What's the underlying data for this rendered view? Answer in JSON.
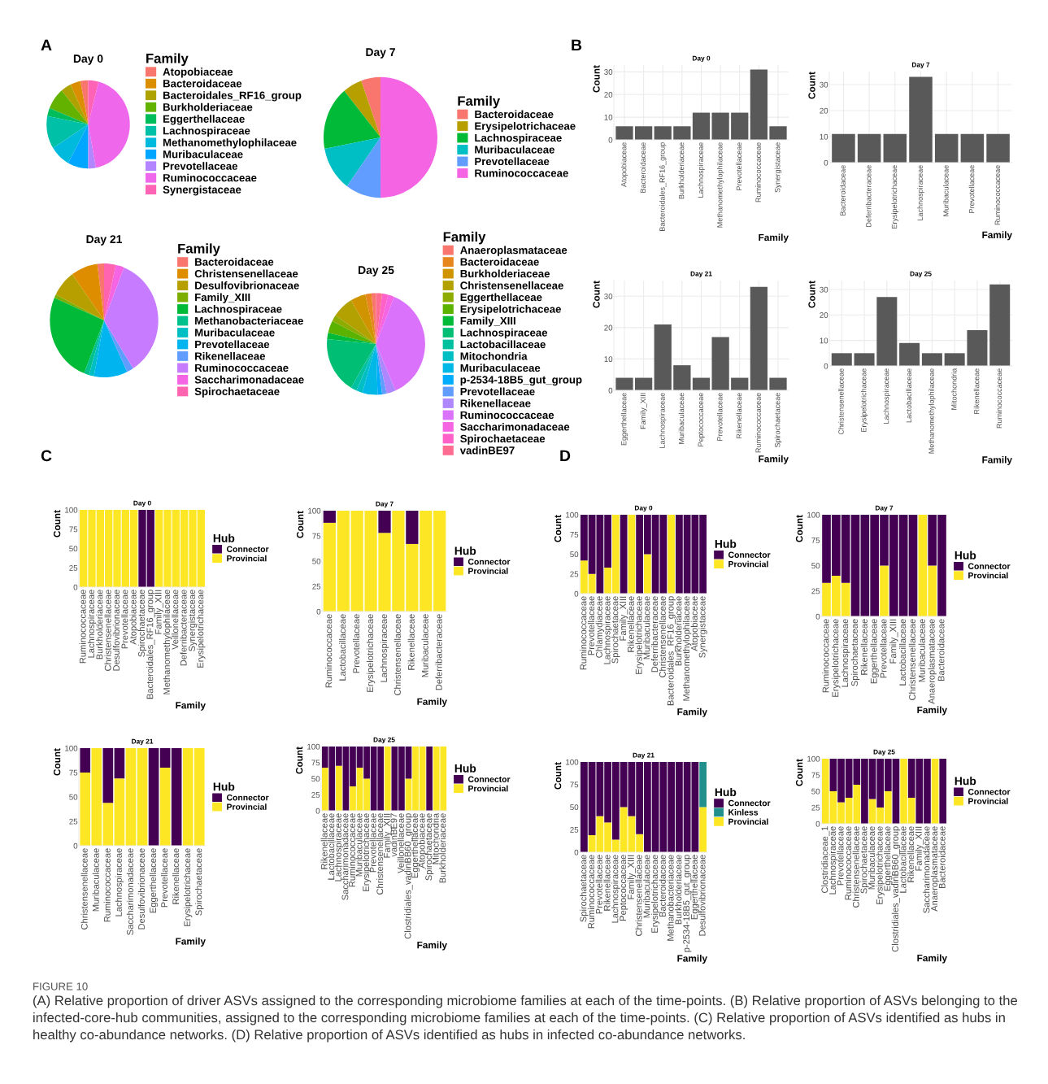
{
  "chart_data": [
    {
      "type": "pie",
      "title": "Day 0",
      "legend_title": "Family",
      "legend": "right",
      "annotations": [
        "A"
      ],
      "categories": [
        "Atopobiaceae",
        "Bacteroidaceae",
        "Bacteroidales_RF16_group",
        "Burkholderiaceae",
        "Eggerthellaceae",
        "Lachnospiraceae",
        "Methanomethylophilaceae",
        "Muribaculaceae",
        "Prevotellaceae",
        "Ruminococcaceae",
        "Synergistaceae"
      ],
      "values": [
        3,
        4,
        4,
        8,
        3,
        12,
        8,
        8,
        3,
        43,
        4
      ],
      "colors": [
        "#F8766D",
        "#DB8E00",
        "#AEA200",
        "#64B200",
        "#00BD5C",
        "#00C1A7",
        "#00BADE",
        "#00A6FF",
        "#B385FF",
        "#EF67EB",
        "#FF63B6"
      ]
    },
    {
      "type": "pie",
      "title": "Day 7",
      "legend_title": "Family",
      "legend": "right",
      "categories": [
        "Bacteroidaceae",
        "Erysipelotrichaceae",
        "Lachnospiraceae",
        "Muribaculaceae",
        "Prevotellaceae",
        "Ruminococcaceae"
      ],
      "values": [
        5.5,
        5.5,
        17,
        12,
        10,
        50
      ],
      "colors": [
        "#F8766D",
        "#B79F00",
        "#00BA38",
        "#00BFC4",
        "#619CFF",
        "#F564E3"
      ]
    },
    {
      "type": "pie",
      "title": "Day 21",
      "legend_title": "Family",
      "legend": "right",
      "categories": [
        "Bacteroidaceae",
        "Christensenellaceae",
        "Desulfovibrionaceae",
        "Family_XIII",
        "Lachnospiraceae",
        "Methanobacteriaceae",
        "Muribaculaceae",
        "Prevotellaceae",
        "Rikenellaceae",
        "Ruminococcaceae",
        "Saccharimonadaceae",
        "Spirochaetaceae"
      ],
      "values": [
        2,
        8,
        7.5,
        1,
        25.5,
        1.5,
        1.5,
        10,
        2,
        35,
        2.5,
        3.5
      ],
      "colors": [
        "#F8766D",
        "#DE8C00",
        "#B79F00",
        "#7CAE00",
        "#00BA38",
        "#00C08B",
        "#00BFC4",
        "#00B4F0",
        "#619CFF",
        "#C77CFF",
        "#F564E3",
        "#FF64B0"
      ]
    },
    {
      "type": "pie",
      "title": "Day 25",
      "legend_title": "Family",
      "legend": "right",
      "categories": [
        "Anaeroplasmataceae",
        "Bacteroidaceae",
        "Burkholderiaceae",
        "Christensenellaceae",
        "Eggerthellaceae",
        "Erysipelotrichaceae",
        "Family_XIII",
        "Lachnospiraceae",
        "Lactobacillaceae",
        "Mitochondria",
        "Muribaculaceae",
        "p-2534-18B5_gut_group",
        "Prevotellaceae",
        "Rikenellaceae",
        "Ruminococcaceae",
        "Saccharimonadaceae",
        "Spirochaetaceae",
        "vadinBE97"
      ],
      "values": [
        1.5,
        2,
        5,
        7,
        2,
        4,
        2,
        18,
        2,
        2,
        5,
        1.5,
        1.5,
        3,
        37.5,
        2,
        2,
        2
      ],
      "colors": [
        "#F8766D",
        "#E7851E",
        "#D09400",
        "#B2A100",
        "#8EAB00",
        "#5BB300",
        "#00BA38",
        "#00BF74",
        "#00C19F",
        "#00BFC4",
        "#00B8E5",
        "#00ACFC",
        "#619CFF",
        "#AE87FF",
        "#DB72FB",
        "#F564E3",
        "#FF61C9",
        "#FF6C91"
      ]
    },
    {
      "type": "bar",
      "title": "Day 0",
      "xlabel": "Family",
      "ylabel": "Count",
      "annotations": [
        "B"
      ],
      "grid": true,
      "ylim": [
        0,
        33
      ],
      "yticks": [
        0,
        10,
        20,
        30
      ],
      "categories": [
        "Atopobiaceae",
        "Bacteroidaceae",
        "Bacteroidales_RF16_group",
        "Burkholderiaceae",
        "Lachnospiraceae",
        "Methanomethylophilaceae",
        "Prevotellaceae",
        "Ruminococcaceae",
        "Synergistaceae"
      ],
      "series": [
        {
          "color": "#595959",
          "values": [
            6,
            6,
            6,
            6,
            12,
            12,
            12,
            31,
            6
          ]
        }
      ]
    },
    {
      "type": "bar",
      "title": "Day 7",
      "xlabel": "Family",
      "ylabel": "Count",
      "grid": true,
      "ylim": [
        0,
        35
      ],
      "yticks": [
        0,
        10,
        20,
        30
      ],
      "categories": [
        "Bacteroidaceae",
        "Deferribacteraceae",
        "Erysipelotrichaceae",
        "Lachnospiraceae",
        "Muribaculaceae",
        "Prevotellaceae",
        "Ruminococcaceae"
      ],
      "series": [
        {
          "color": "#595959",
          "values": [
            11,
            11,
            11,
            33,
            11,
            11,
            11
          ]
        }
      ]
    },
    {
      "type": "bar",
      "title": "Day 21",
      "xlabel": "Family",
      "ylabel": "Count",
      "grid": true,
      "ylim": [
        0,
        35
      ],
      "yticks": [
        0,
        10,
        20,
        30
      ],
      "categories": [
        "Eggerthellaceae",
        "Family_XIII",
        "Lachnospiraceae",
        "Muribaculaceae",
        "Peptococcaceae",
        "Prevotellaceae",
        "Rikenellaceae",
        "Ruminococcaceae",
        "Spirochaetaceae"
      ],
      "series": [
        {
          "color": "#595959",
          "values": [
            4,
            4,
            21,
            8,
            4,
            17,
            4,
            33,
            4
          ]
        }
      ]
    },
    {
      "type": "bar",
      "title": "Day 25",
      "xlabel": "Family",
      "ylabel": "Count",
      "grid": true,
      "ylim": [
        0,
        33.5
      ],
      "yticks": [
        0,
        10,
        20,
        30
      ],
      "categories": [
        "Christensenellaceae",
        "Erysipelotrichaceae",
        "Lachnospiraceae",
        "Lactobacillaceae",
        "Methanomethylophilaceae",
        "Mitochondria",
        "Rikenellaceae",
        "Ruminococcaceae"
      ],
      "series": [
        {
          "color": "#595959",
          "values": [
            5,
            5,
            27,
            9,
            5,
            5,
            14,
            32
          ]
        }
      ]
    },
    {
      "type": "bar",
      "stacked": true,
      "title": "Day 0",
      "xlabel": "Family",
      "ylabel": "Count",
      "legend_title": "Hub",
      "legend": "right",
      "annotations": [
        "C"
      ],
      "ylim": [
        0,
        100
      ],
      "yticks": [
        0,
        25,
        50,
        75,
        100
      ],
      "categories": [
        "Ruminococcaceae",
        "Lachnospiraceae",
        "Burkholderiaceae",
        "Christensenellaceae",
        "Desulfovibrionaceae",
        "Prevotellaceae",
        "Atopobiaceae",
        "Spirochaetaceae",
        "Bacteroidales_RF16_group",
        "Family_XIII",
        "Methanomethylophilaceae",
        "Veillonellaceae",
        "Deferribacteraceae",
        "Synergistaceae",
        "Erysipelotrichaceae"
      ],
      "series": [
        {
          "name": "Provincial",
          "color": "#FDE725",
          "values": [
            100,
            100,
            100,
            100,
            100,
            100,
            100,
            0,
            0,
            100,
            100,
            100,
            100,
            100,
            100
          ]
        },
        {
          "name": "Connector",
          "color": "#440154",
          "values": [
            0,
            0,
            0,
            0,
            0,
            0,
            0,
            100,
            100,
            0,
            0,
            0,
            0,
            0,
            0
          ]
        }
      ]
    },
    {
      "type": "bar",
      "stacked": true,
      "title": "Day 7",
      "xlabel": "Family",
      "ylabel": "Count",
      "legend_title": "Hub",
      "legend": "right",
      "ylim": [
        0,
        100
      ],
      "yticks": [
        0,
        25,
        50,
        75,
        100
      ],
      "categories": [
        "Ruminococcaceae",
        "Lactobacillaceae",
        "Prevotellaceae",
        "Erysipelotrichaceae",
        "Lachnospiraceae",
        "Christensenellaceae",
        "Rikenellaceae",
        "Muribaculaceae",
        "Deferribacteraceae"
      ],
      "series": [
        {
          "name": "Provincial",
          "color": "#FDE725",
          "values": [
            88,
            100,
            100,
            100,
            78,
            100,
            67,
            100,
            100
          ]
        },
        {
          "name": "Connector",
          "color": "#440154",
          "values": [
            12,
            0,
            0,
            0,
            22,
            0,
            33,
            0,
            0
          ]
        }
      ]
    },
    {
      "type": "bar",
      "stacked": true,
      "title": "Day 21",
      "xlabel": "Family",
      "ylabel": "Count",
      "legend_title": "Hub",
      "legend": "right",
      "ylim": [
        0,
        100
      ],
      "yticks": [
        0,
        25,
        50,
        75,
        100
      ],
      "categories": [
        "Christensenellaceae",
        "Muribaculaceae",
        "Ruminococcaceae",
        "Lachnospiraceae",
        "Saccharimonadaceae",
        "Desulfovibrionaceae",
        "Eggerthellaceae",
        "Prevotellaceae",
        "Rikenellaceae",
        "Erysipelotrichaceae",
        "Spirochaetaceae"
      ],
      "series": [
        {
          "name": "Provincial",
          "color": "#FDE725",
          "values": [
            75,
            100,
            44,
            69,
            100,
            100,
            0,
            80,
            0,
            100,
            100
          ]
        },
        {
          "name": "Connector",
          "color": "#440154",
          "values": [
            25,
            0,
            56,
            31,
            0,
            0,
            100,
            20,
            100,
            0,
            0
          ]
        }
      ]
    },
    {
      "type": "bar",
      "stacked": true,
      "title": "Day 25",
      "xlabel": "Family",
      "ylabel": "Count",
      "legend_title": "Hub",
      "legend": "right",
      "ylim": [
        0,
        100
      ],
      "yticks": [
        0,
        25,
        50,
        75,
        100
      ],
      "categories": [
        "Rikenellaceae",
        "Lactobacillaceae",
        "Lachnospiraceae",
        "Saccharimonadaceae",
        "Ruminococcaceae",
        "Muribaculaceae",
        "Erysipelotrichaceae",
        "Prevotellaceae",
        "Christensenellaceae",
        "Family_XIII",
        "vadinBE97",
        "Veillonellaceae",
        "Clostridiales_vadinBB60_group",
        "Eggerthellaceae",
        "Atopobiaceae",
        "Spirochaetaceae",
        "Mitochondria",
        "Burkholderiaceae"
      ],
      "series": [
        {
          "name": "Provincial",
          "color": "#FDE725",
          "values": [
            67,
            0,
            70,
            0,
            38,
            67,
            50,
            0,
            0,
            100,
            0,
            0,
            50,
            100,
            100,
            0,
            100,
            100
          ]
        },
        {
          "name": "Connector",
          "color": "#440154",
          "values": [
            33,
            100,
            30,
            100,
            62,
            33,
            50,
            100,
            100,
            0,
            100,
            100,
            50,
            0,
            0,
            100,
            0,
            0
          ]
        }
      ]
    },
    {
      "type": "bar",
      "stacked": true,
      "title": "Day 0",
      "xlabel": "Family",
      "ylabel": "Count",
      "legend_title": "Hub",
      "legend": "right",
      "annotations": [
        "D"
      ],
      "ylim": [
        0,
        100
      ],
      "yticks": [
        0,
        25,
        50,
        75,
        100
      ],
      "categories": [
        "Ruminococcaceae",
        "Prevotellaceae",
        "Chlamydiaceae",
        "Lachnospiraceae",
        "Spirochaetaceae",
        "Family_XIII",
        "Rikenellaceae",
        "Erysipelotrichaceae",
        "Muribaculaceae",
        "Deferribacteraceae",
        "Christensenellaceae",
        "Bacteroidales_RF16_group",
        "Burkholderiaceae",
        "Methanomethylophilaceae",
        "Atopobiaceae",
        "Synergistaceae"
      ],
      "series": [
        {
          "name": "Provincial",
          "color": "#FDE725",
          "values": [
            42,
            25,
            0,
            33,
            100,
            0,
            100,
            0,
            50,
            0,
            0,
            100,
            0,
            0,
            0,
            0
          ]
        },
        {
          "name": "Connector",
          "color": "#440154",
          "values": [
            58,
            75,
            100,
            67,
            0,
            100,
            0,
            100,
            50,
            100,
            100,
            0,
            100,
            100,
            100,
            100
          ]
        }
      ]
    },
    {
      "type": "bar",
      "stacked": true,
      "title": "Day 7",
      "xlabel": "Family",
      "ylabel": "Count",
      "legend_title": "Hub",
      "legend": "right",
      "ylim": [
        0,
        100
      ],
      "yticks": [
        0,
        25,
        50,
        75,
        100
      ],
      "categories": [
        "Ruminococcaceae",
        "Erysipelotrichaceae",
        "Lachnospiraceae",
        "Spirochaetaceae",
        "Rikenellaceae",
        "Eggerthellaceae",
        "Prevotellaceae",
        "Family_XIII",
        "Lactobacillaceae",
        "Christensenellaceae",
        "Muribaculaceae",
        "Anaeroplasmataceae",
        "Bacteroidaceae"
      ],
      "series": [
        {
          "name": "Provincial",
          "color": "#FDE725",
          "values": [
            33,
            40,
            33,
            0,
            0,
            0,
            50,
            0,
            0,
            0,
            100,
            50,
            0
          ]
        },
        {
          "name": "Connector",
          "color": "#440154",
          "values": [
            67,
            60,
            67,
            100,
            100,
            100,
            50,
            100,
            100,
            100,
            0,
            50,
            100
          ]
        }
      ]
    },
    {
      "type": "bar",
      "stacked": true,
      "title": "Day 21",
      "xlabel": "Family",
      "ylabel": "Count",
      "legend_title": "Hub",
      "legend": "right",
      "ylim": [
        0,
        100
      ],
      "yticks": [
        0,
        25,
        50,
        75,
        100
      ],
      "categories": [
        "Spirochaetaceae",
        "Ruminococcaceae",
        "Prevotellaceae",
        "Rikenellaceae",
        "Lachnospiraceae",
        "Peptococcaceae",
        "Family_XIII",
        "Christensenellaceae",
        "Muribaculaceae",
        "Erysipelotrichaceae",
        "Bacteroidaceae",
        "Methanobacteriaceae",
        "Burkholderiaceae",
        "p-2534-18B5_gut_group",
        "Eggerthellaceae",
        "Desulfovibrionaceae"
      ],
      "series": [
        {
          "name": "Provincial",
          "color": "#FDE725",
          "values": [
            0,
            19,
            40,
            33,
            14,
            50,
            40,
            20,
            0,
            0,
            0,
            0,
            0,
            0,
            0,
            50
          ]
        },
        {
          "name": "Kinless",
          "color": "#21908C",
          "values": [
            0,
            0,
            0,
            0,
            0,
            0,
            0,
            0,
            0,
            0,
            0,
            0,
            0,
            0,
            0,
            50
          ]
        },
        {
          "name": "Connector",
          "color": "#440154",
          "values": [
            100,
            81,
            60,
            67,
            86,
            50,
            60,
            80,
            100,
            100,
            100,
            100,
            100,
            100,
            100,
            0
          ]
        }
      ]
    },
    {
      "type": "bar",
      "stacked": true,
      "title": "Day 25",
      "xlabel": "Family",
      "ylabel": "Count",
      "legend_title": "Hub",
      "legend": "right",
      "annotations": [
        "FIGURE 10",
        "(A) Relative proportion of driver ASVs assigned to the corresponding microbiome families at each of the time-points. (B) Relative proportion of ASVs belonging to the infected-core-hub communities, assigned to the corresponding microbiome families at each of the time-points. (C) Relative proportion of ASVs identified as hubs in healthy co-abundance networks. (D) Relative proportion of ASVs identified as hubs in infected co-abundance networks."
      ],
      "ylim": [
        0,
        100
      ],
      "yticks": [
        0,
        25,
        50,
        75,
        100
      ],
      "categories": [
        "Clostridiaceae_1",
        "Lachnospiraceae",
        "Prevotellaceae",
        "Ruminococcaceae",
        "Christensenellaceae",
        "Spirochaetaceae",
        "Muribaculaceae",
        "Erysipelotrichaceae",
        "Eggerthellaceae",
        "Clostridiales_vadinBB60_group",
        "Lactobacillaceae",
        "Rikenellaceae",
        "Family_XIII",
        "Saccharimonadaceae",
        "Anaeroplasmataceae",
        "Bacteroidaceae"
      ],
      "series": [
        {
          "name": "Provincial",
          "color": "#FDE725",
          "values": [
            100,
            50,
            33,
            40,
            60,
            0,
            38,
            25,
            50,
            0,
            100,
            40,
            0,
            0,
            100,
            0
          ]
        },
        {
          "name": "Connector",
          "color": "#440154",
          "values": [
            0,
            50,
            67,
            60,
            40,
            100,
            62,
            75,
            50,
            100,
            0,
            60,
            100,
            100,
            0,
            100
          ]
        }
      ]
    }
  ]
}
